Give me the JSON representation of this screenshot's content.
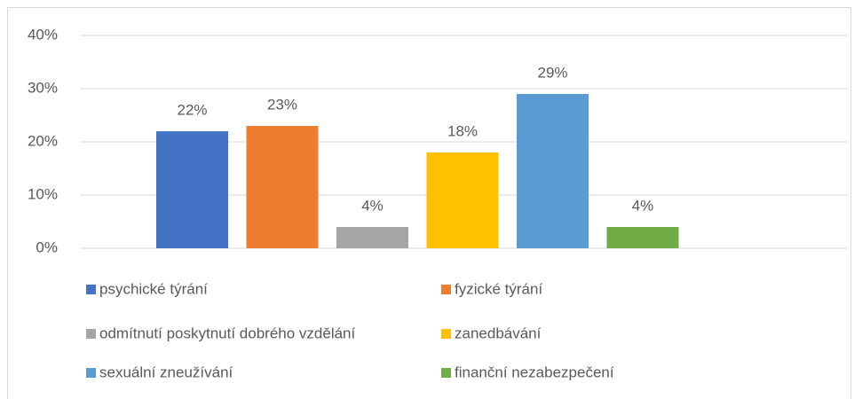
{
  "chart_data": {
    "type": "bar",
    "categories": [
      null
    ],
    "series": [
      {
        "name": "psychické týrání",
        "color": "#4472c4",
        "values": [
          22
        ],
        "value_labels": [
          "22%"
        ]
      },
      {
        "name": "fyzické týrání",
        "color": "#ed7d31",
        "values": [
          23
        ],
        "value_labels": [
          "23%"
        ]
      },
      {
        "name": "odmítnutí poskytnutí dobrého vzdělání",
        "color": "#a5a5a5",
        "values": [
          4
        ],
        "value_labels": [
          "4%"
        ]
      },
      {
        "name": "zanedbávání",
        "color": "#ffc000",
        "values": [
          18
        ],
        "value_labels": [
          "18%"
        ]
      },
      {
        "name": "sexuální zneužívání",
        "color": "#5b9bd5",
        "values": [
          29
        ],
        "value_labels": [
          "29%"
        ]
      },
      {
        "name": "finanční nezabezpečení",
        "color": "#70ad47",
        "values": [
          4
        ],
        "value_labels": [
          "4%"
        ]
      }
    ],
    "ylim": [
      0,
      40
    ],
    "yticks": [
      {
        "value": 0,
        "label": "0%"
      },
      {
        "value": 10,
        "label": "10%"
      },
      {
        "value": 20,
        "label": "20%"
      },
      {
        "value": 30,
        "label": "30%"
      },
      {
        "value": 40,
        "label": "40%"
      }
    ],
    "grid": true,
    "legend": "bottom"
  }
}
